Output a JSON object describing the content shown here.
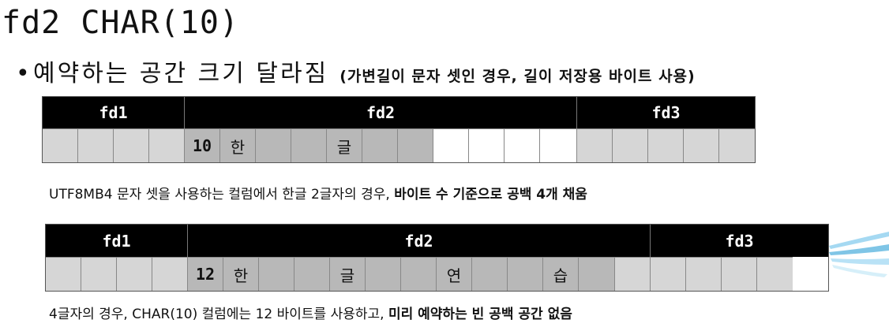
{
  "title": "fd2 CHAR(10)",
  "bullet": {
    "main": "예약하는 공간 크기 달라짐",
    "sub": "(가변길이 문자 셋인 경우, 길이 저장용 바이트 사용)"
  },
  "diagram1": {
    "headers": [
      "fd1",
      "fd2",
      "fd3"
    ],
    "len": "10",
    "chars": [
      "한",
      "글"
    ]
  },
  "caption1": {
    "text": "UTF8MB4 문자 셋을 사용하는 컬럼에서 한글 2글자의 경우, ",
    "bold": "바이트 수 기준으로 공백 4개 채움"
  },
  "diagram2": {
    "headers": [
      "fd1",
      "fd2",
      "fd3"
    ],
    "len": "12",
    "chars": [
      "한",
      "글",
      "연",
      "습"
    ]
  },
  "caption2": {
    "text": "4글자의 경우, CHAR(10) 컬럼에는 12 바이트를 사용하고, ",
    "bold": "미리 예약하는 빈 공백 공간 없음"
  },
  "colors": {
    "header_bg": "#000000",
    "cell_light": "#d6d6d6",
    "cell_dark": "#b8b8b8",
    "swoosh": "#5fb7e0"
  }
}
